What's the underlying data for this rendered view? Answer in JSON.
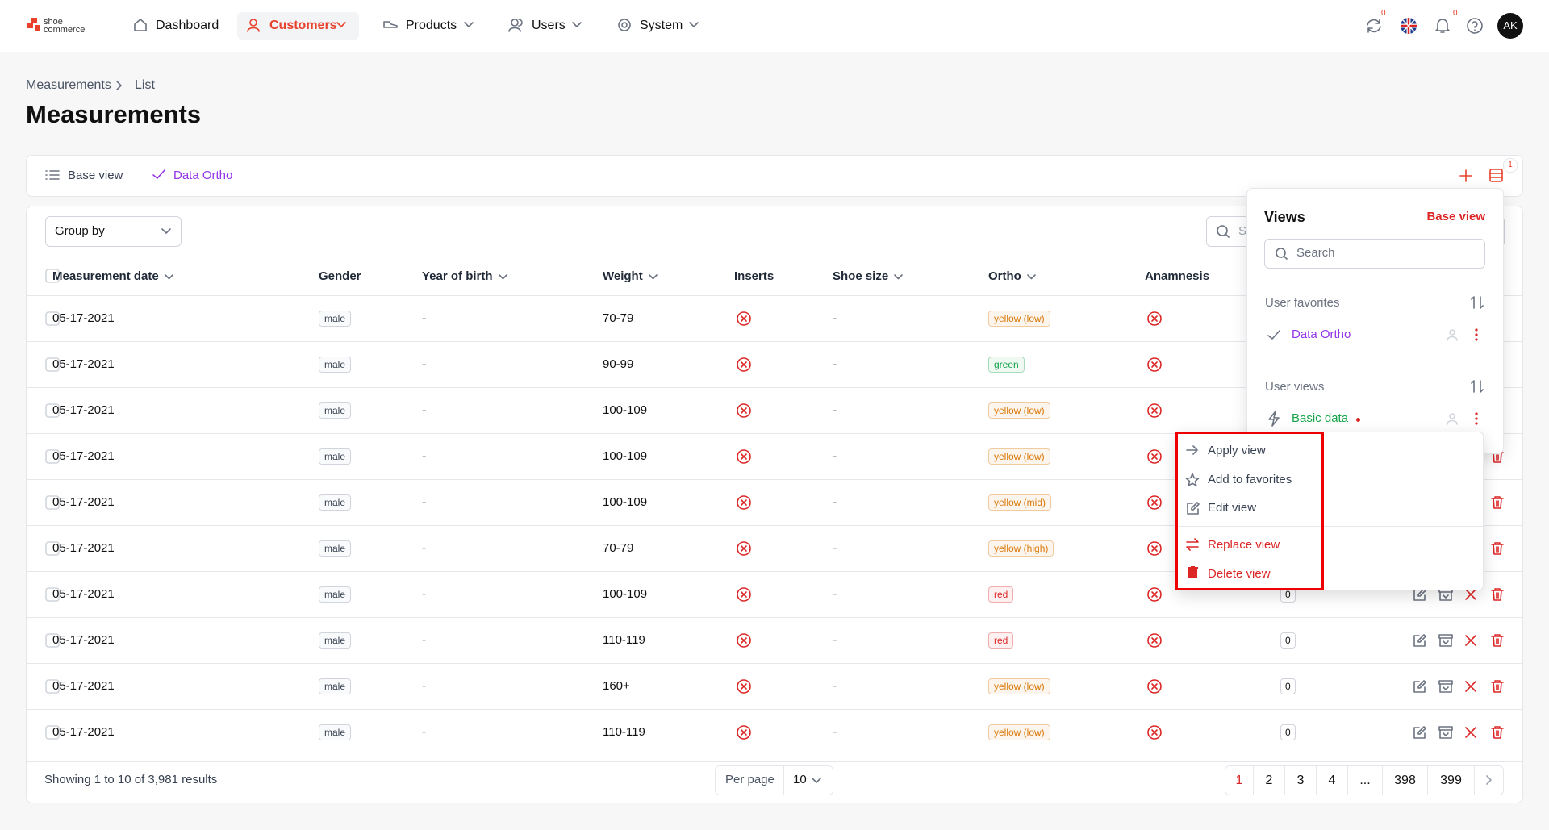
{
  "nav": {
    "logo": "shoe commerce",
    "items": [
      "Dashboard",
      "Customers",
      "Products",
      "Users",
      "System"
    ],
    "sync_badge": "0",
    "notif_badge": "0",
    "avatar": "AK"
  },
  "breadcrumb": [
    "Measurements",
    "List"
  ],
  "title": "Measurements",
  "views_bar": {
    "tabs": [
      "Base view",
      "Data Ortho"
    ],
    "badge": "1"
  },
  "toolbar": {
    "group_by": "Group by",
    "search_placeholder": "Search"
  },
  "table": {
    "columns": [
      "Measurement date",
      "Gender",
      "Year of birth",
      "Weight",
      "Inserts",
      "Shoe size",
      "Ortho",
      "Anamnesis"
    ],
    "rows": [
      {
        "date": "05-17-2021",
        "gender": "male",
        "year_of_birth": "-",
        "weight": "70-79",
        "shoe_size": "-",
        "ortho": "yellow (low)",
        "ortho_color": "#d97706"
      },
      {
        "date": "05-17-2021",
        "gender": "male",
        "year_of_birth": "-",
        "weight": "90-99",
        "shoe_size": "-",
        "ortho": "green",
        "ortho_color": "#16a34a"
      },
      {
        "date": "05-17-2021",
        "gender": "male",
        "year_of_birth": "-",
        "weight": "100-109",
        "shoe_size": "-",
        "ortho": "yellow (low)",
        "ortho_color": "#d97706"
      },
      {
        "date": "05-17-2021",
        "gender": "male",
        "year_of_birth": "-",
        "weight": "100-109",
        "shoe_size": "-",
        "ortho": "yellow (low)",
        "ortho_color": "#d97706"
      },
      {
        "date": "05-17-2021",
        "gender": "male",
        "year_of_birth": "-",
        "weight": "100-109",
        "shoe_size": "-",
        "ortho": "yellow (mid)",
        "ortho_color": "#d97706"
      },
      {
        "date": "05-17-2021",
        "gender": "male",
        "year_of_birth": "-",
        "weight": "70-79",
        "shoe_size": "-",
        "ortho": "yellow (high)",
        "ortho_color": "#d97706"
      },
      {
        "date": "05-17-2021",
        "gender": "male",
        "year_of_birth": "-",
        "weight": "100-109",
        "shoe_size": "-",
        "ortho": "red",
        "ortho_color": "#dc2626",
        "count": "0"
      },
      {
        "date": "05-17-2021",
        "gender": "male",
        "year_of_birth": "-",
        "weight": "110-119",
        "shoe_size": "-",
        "ortho": "red",
        "ortho_color": "#dc2626",
        "count": "0"
      },
      {
        "date": "05-17-2021",
        "gender": "male",
        "year_of_birth": "-",
        "weight": "160+",
        "shoe_size": "-",
        "ortho": "yellow (low)",
        "ortho_color": "#d97706",
        "count": "0"
      },
      {
        "date": "05-17-2021",
        "gender": "male",
        "year_of_birth": "-",
        "weight": "110-119",
        "shoe_size": "-",
        "ortho": "yellow (low)",
        "ortho_color": "#d97706",
        "count": "0"
      }
    ]
  },
  "footer": {
    "summary": "Showing 1 to 10 of 3,981 results",
    "per_page_label": "Per page",
    "per_page": "10",
    "pages": [
      "1",
      "2",
      "3",
      "4",
      "...",
      "398",
      "399"
    ]
  },
  "views_panel": {
    "title": "Views",
    "base_view_link": "Base view",
    "search_placeholder": "Search",
    "favorites_heading": "User favorites",
    "favorites": [
      "Data Ortho"
    ],
    "user_views_heading": "User views",
    "user_views": [
      "Basic data"
    ]
  },
  "context_menu": {
    "items": [
      "Apply view",
      "Add to favorites",
      "Edit view",
      "Replace view",
      "Delete view"
    ]
  }
}
